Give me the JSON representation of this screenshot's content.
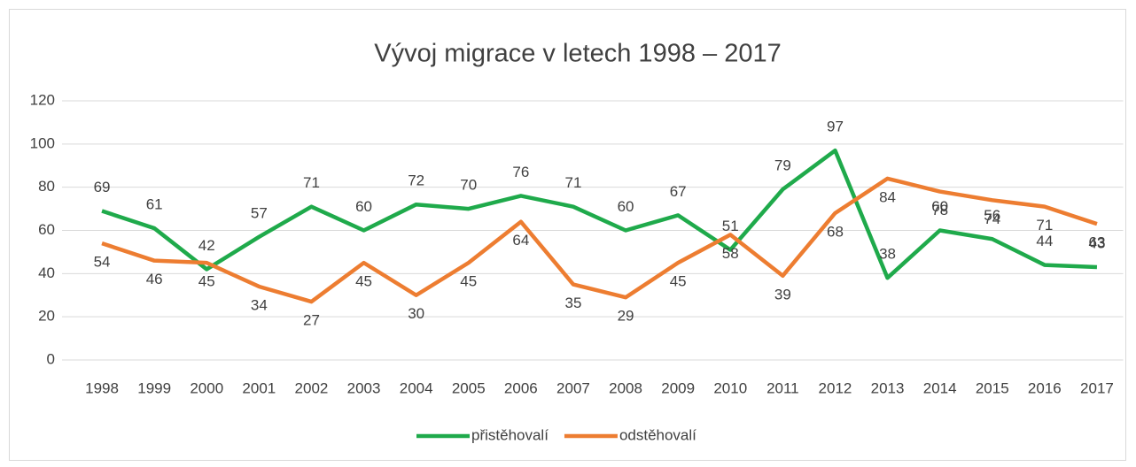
{
  "chart_data": {
    "type": "line",
    "title": "Vývoj migrace v letech 1998 – 2017",
    "categories": [
      "1998",
      "1999",
      "2000",
      "2001",
      "2002",
      "2003",
      "2004",
      "2005",
      "2006",
      "2007",
      "2008",
      "2009",
      "2010",
      "2011",
      "2012",
      "2013",
      "2014",
      "2015",
      "2016",
      "2017"
    ],
    "series": [
      {
        "name": "přistěhovalí",
        "color": "#1faa4b",
        "values": [
          69,
          61,
          42,
          57,
          71,
          60,
          72,
          70,
          76,
          71,
          60,
          67,
          51,
          79,
          97,
          38,
          60,
          56,
          44,
          43
        ]
      },
      {
        "name": "odstěhovalí",
        "color": "#ed7d31",
        "values": [
          54,
          46,
          45,
          34,
          27,
          45,
          30,
          45,
          64,
          35,
          29,
          45,
          58,
          39,
          68,
          84,
          78,
          74,
          71,
          63
        ]
      }
    ],
    "ylim": [
      0,
      120
    ],
    "yticks": [
      0,
      20,
      40,
      60,
      80,
      100,
      120
    ],
    "grid": true,
    "legend": "bottom"
  }
}
